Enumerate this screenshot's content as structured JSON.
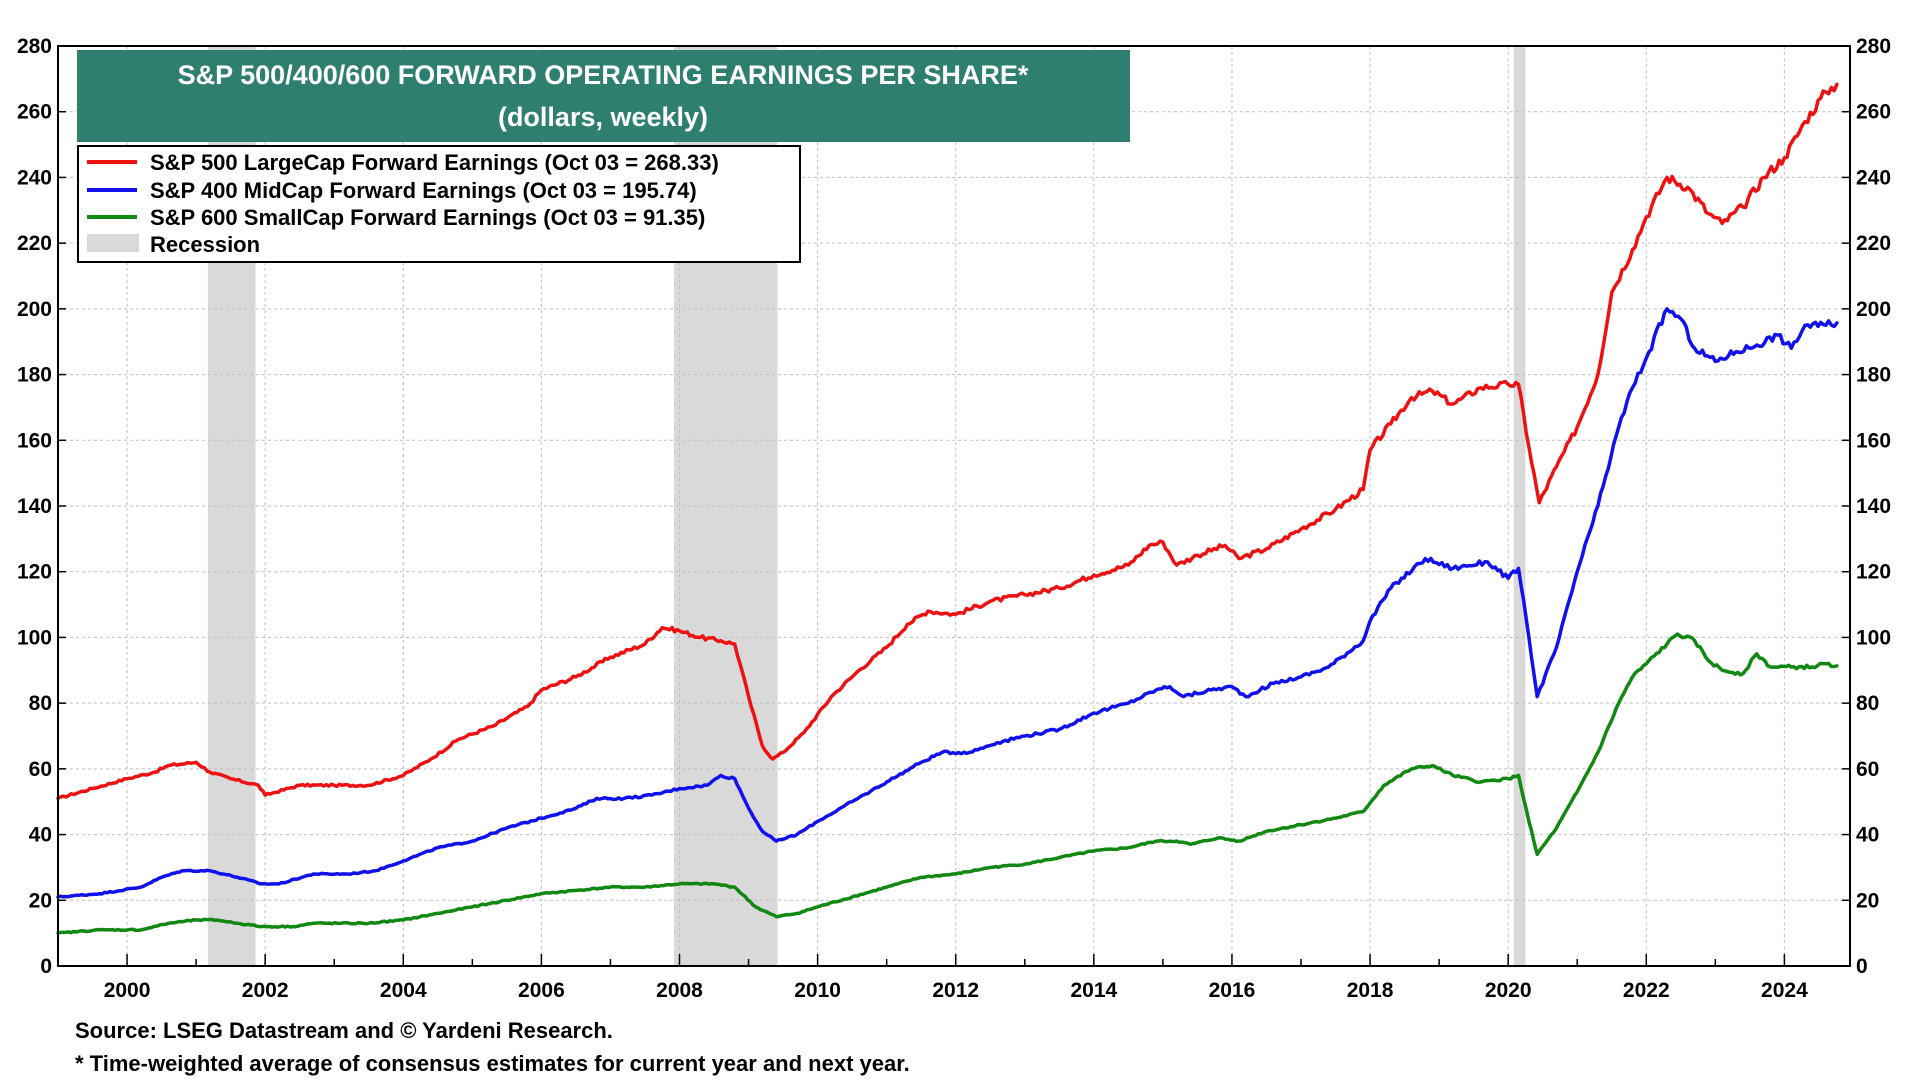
{
  "chart_data": {
    "type": "line",
    "title": "S&P 500/400/600 FORWARD OPERATING EARNINGS PER SHARE*",
    "subtitle": "(dollars, weekly)",
    "xlim": [
      1999.0,
      2024.95
    ],
    "ylim": [
      0,
      280
    ],
    "y_ticks": [
      0,
      20,
      40,
      60,
      80,
      100,
      120,
      140,
      160,
      180,
      200,
      220,
      240,
      260,
      280
    ],
    "x_ticks": [
      2000,
      2002,
      2004,
      2006,
      2008,
      2010,
      2012,
      2014,
      2016,
      2018,
      2020,
      2022,
      2024
    ],
    "grid": true,
    "legend_position": "top-left",
    "recession_label": "Recession",
    "recessions": [
      [
        2001.17,
        2001.86
      ],
      [
        2007.92,
        2009.42
      ],
      [
        2020.08,
        2020.25
      ]
    ],
    "series": [
      {
        "name": "S&P 500 LargeCap Forward Earnings (Oct 03 = 268.33)",
        "color": "#ee1111",
        "points": [
          [
            1999.0,
            51
          ],
          [
            1999.5,
            54
          ],
          [
            2000.0,
            57
          ],
          [
            2000.4,
            59
          ],
          [
            2000.6,
            61
          ],
          [
            2001.0,
            62
          ],
          [
            2001.2,
            59
          ],
          [
            2001.5,
            57
          ],
          [
            2001.9,
            55
          ],
          [
            2002.0,
            52
          ],
          [
            2002.5,
            55
          ],
          [
            2003.0,
            55
          ],
          [
            2003.5,
            55
          ],
          [
            2004.0,
            58
          ],
          [
            2004.4,
            63
          ],
          [
            2004.8,
            69
          ],
          [
            2005.3,
            73
          ],
          [
            2005.8,
            79
          ],
          [
            2006.0,
            84
          ],
          [
            2006.5,
            88
          ],
          [
            2007.0,
            94
          ],
          [
            2007.5,
            98
          ],
          [
            2007.75,
            103
          ],
          [
            2008.0,
            102
          ],
          [
            2008.3,
            100
          ],
          [
            2008.6,
            99
          ],
          [
            2008.8,
            98
          ],
          [
            2009.0,
            82
          ],
          [
            2009.2,
            67
          ],
          [
            2009.35,
            63
          ],
          [
            2009.5,
            65
          ],
          [
            2009.8,
            71
          ],
          [
            2010.2,
            82
          ],
          [
            2010.6,
            90
          ],
          [
            2011.0,
            97
          ],
          [
            2011.3,
            104
          ],
          [
            2011.6,
            108
          ],
          [
            2012.0,
            107
          ],
          [
            2012.5,
            111
          ],
          [
            2013.0,
            113
          ],
          [
            2013.5,
            115
          ],
          [
            2014.0,
            119
          ],
          [
            2014.5,
            122
          ],
          [
            2014.8,
            128
          ],
          [
            2015.0,
            129
          ],
          [
            2015.2,
            122
          ],
          [
            2015.5,
            125
          ],
          [
            2015.9,
            128
          ],
          [
            2016.1,
            124
          ],
          [
            2016.5,
            127
          ],
          [
            2017.0,
            133
          ],
          [
            2017.5,
            139
          ],
          [
            2017.9,
            145
          ],
          [
            2018.0,
            157
          ],
          [
            2018.3,
            165
          ],
          [
            2018.6,
            173
          ],
          [
            2018.9,
            175
          ],
          [
            2019.2,
            171
          ],
          [
            2019.6,
            176
          ],
          [
            2020.0,
            177
          ],
          [
            2020.15,
            177
          ],
          [
            2020.3,
            158
          ],
          [
            2020.45,
            141
          ],
          [
            2020.7,
            152
          ],
          [
            2021.0,
            164
          ],
          [
            2021.3,
            180
          ],
          [
            2021.5,
            205
          ],
          [
            2021.8,
            218
          ],
          [
            2022.0,
            228
          ],
          [
            2022.3,
            240
          ],
          [
            2022.6,
            237
          ],
          [
            2022.9,
            229
          ],
          [
            2023.1,
            226
          ],
          [
            2023.4,
            231
          ],
          [
            2023.7,
            240
          ],
          [
            2024.0,
            246
          ],
          [
            2024.3,
            257
          ],
          [
            2024.6,
            266
          ],
          [
            2024.76,
            268.33
          ]
        ]
      },
      {
        "name": "S&P 400 MidCap Forward Earnings (Oct 03 = 195.74)",
        "color": "#1111ee",
        "points": [
          [
            1999.0,
            21
          ],
          [
            1999.6,
            22
          ],
          [
            2000.2,
            24
          ],
          [
            2000.5,
            27
          ],
          [
            2000.8,
            29
          ],
          [
            2001.2,
            29
          ],
          [
            2001.6,
            27
          ],
          [
            2001.95,
            25
          ],
          [
            2002.2,
            25
          ],
          [
            2002.7,
            28
          ],
          [
            2003.2,
            28
          ],
          [
            2003.6,
            29
          ],
          [
            2004.0,
            32
          ],
          [
            2004.5,
            36
          ],
          [
            2005.0,
            38
          ],
          [
            2005.5,
            42
          ],
          [
            2006.0,
            45
          ],
          [
            2006.5,
            48
          ],
          [
            2006.8,
            51
          ],
          [
            2007.2,
            51
          ],
          [
            2007.6,
            52
          ],
          [
            2008.0,
            54
          ],
          [
            2008.4,
            55
          ],
          [
            2008.6,
            58
          ],
          [
            2008.8,
            57
          ],
          [
            2009.0,
            48
          ],
          [
            2009.2,
            41
          ],
          [
            2009.4,
            38
          ],
          [
            2009.7,
            40
          ],
          [
            2010.0,
            44
          ],
          [
            2010.5,
            50
          ],
          [
            2011.0,
            56
          ],
          [
            2011.5,
            62
          ],
          [
            2011.8,
            65
          ],
          [
            2012.2,
            65
          ],
          [
            2012.6,
            68
          ],
          [
            2013.0,
            70
          ],
          [
            2013.5,
            72
          ],
          [
            2014.0,
            77
          ],
          [
            2014.5,
            80
          ],
          [
            2014.9,
            84
          ],
          [
            2015.1,
            85
          ],
          [
            2015.3,
            82
          ],
          [
            2015.7,
            84
          ],
          [
            2016.0,
            85
          ],
          [
            2016.2,
            82
          ],
          [
            2016.6,
            86
          ],
          [
            2017.0,
            88
          ],
          [
            2017.4,
            91
          ],
          [
            2017.9,
            99
          ],
          [
            2018.0,
            105
          ],
          [
            2018.3,
            115
          ],
          [
            2018.8,
            124
          ],
          [
            2019.2,
            121
          ],
          [
            2019.7,
            123
          ],
          [
            2020.0,
            118
          ],
          [
            2020.15,
            121
          ],
          [
            2020.3,
            100
          ],
          [
            2020.42,
            82
          ],
          [
            2020.7,
            97
          ],
          [
            2021.0,
            120
          ],
          [
            2021.3,
            140
          ],
          [
            2021.6,
            164
          ],
          [
            2021.8,
            176
          ],
          [
            2022.0,
            185
          ],
          [
            2022.3,
            200
          ],
          [
            2022.5,
            197
          ],
          [
            2022.7,
            188
          ],
          [
            2023.0,
            184
          ],
          [
            2023.3,
            187
          ],
          [
            2023.6,
            189
          ],
          [
            2023.9,
            192
          ],
          [
            2024.1,
            188
          ],
          [
            2024.3,
            195
          ],
          [
            2024.6,
            195
          ],
          [
            2024.76,
            195.74
          ]
        ]
      },
      {
        "name": "S&P 600 SmallCap Forward Earnings (Oct 03 = 91.35)",
        "color": "#118811",
        "points": [
          [
            1999.0,
            10
          ],
          [
            1999.6,
            11
          ],
          [
            2000.2,
            11
          ],
          [
            2000.6,
            13
          ],
          [
            2001.0,
            14
          ],
          [
            2001.3,
            14
          ],
          [
            2001.6,
            13
          ],
          [
            2001.95,
            12
          ],
          [
            2002.4,
            12
          ],
          [
            2002.7,
            13
          ],
          [
            2003.5,
            13
          ],
          [
            2004.0,
            14
          ],
          [
            2004.5,
            16
          ],
          [
            2005.0,
            18
          ],
          [
            2005.5,
            20
          ],
          [
            2006.0,
            22
          ],
          [
            2006.5,
            23
          ],
          [
            2007.0,
            24
          ],
          [
            2007.5,
            24
          ],
          [
            2008.0,
            25
          ],
          [
            2008.5,
            25
          ],
          [
            2008.8,
            24
          ],
          [
            2009.1,
            18
          ],
          [
            2009.4,
            15
          ],
          [
            2009.7,
            16
          ],
          [
            2010.0,
            18
          ],
          [
            2010.5,
            21
          ],
          [
            2011.0,
            24
          ],
          [
            2011.5,
            27
          ],
          [
            2012.0,
            28
          ],
          [
            2012.5,
            30
          ],
          [
            2013.0,
            31
          ],
          [
            2013.5,
            33
          ],
          [
            2014.0,
            35
          ],
          [
            2014.5,
            36
          ],
          [
            2014.9,
            38
          ],
          [
            2015.2,
            38
          ],
          [
            2015.4,
            37
          ],
          [
            2015.8,
            39
          ],
          [
            2016.1,
            38
          ],
          [
            2016.5,
            41
          ],
          [
            2017.0,
            43
          ],
          [
            2017.5,
            45
          ],
          [
            2017.9,
            47
          ],
          [
            2018.2,
            55
          ],
          [
            2018.6,
            60
          ],
          [
            2018.9,
            61
          ],
          [
            2019.2,
            58
          ],
          [
            2019.6,
            56
          ],
          [
            2020.0,
            57
          ],
          [
            2020.15,
            58
          ],
          [
            2020.3,
            44
          ],
          [
            2020.42,
            34
          ],
          [
            2020.7,
            42
          ],
          [
            2021.0,
            53
          ],
          [
            2021.3,
            65
          ],
          [
            2021.6,
            80
          ],
          [
            2021.8,
            88
          ],
          [
            2022.0,
            92
          ],
          [
            2022.3,
            98
          ],
          [
            2022.45,
            101
          ],
          [
            2022.7,
            99
          ],
          [
            2022.9,
            93
          ],
          [
            2023.1,
            90
          ],
          [
            2023.4,
            89
          ],
          [
            2023.6,
            95
          ],
          [
            2023.8,
            91
          ],
          [
            2024.1,
            91
          ],
          [
            2024.4,
            91
          ],
          [
            2024.6,
            92
          ],
          [
            2024.76,
            91.35
          ]
        ]
      }
    ]
  },
  "footer": {
    "source": "Source: LSEG Datastream and © Yardeni Research.",
    "note": "* Time-weighted average of consensus estimates for current year and next year."
  },
  "colors": {
    "title_background": "#2e7f70",
    "title_text": "#ffffff",
    "recession_fill": "#d9d9d9",
    "grid": "#bfbfbf"
  }
}
